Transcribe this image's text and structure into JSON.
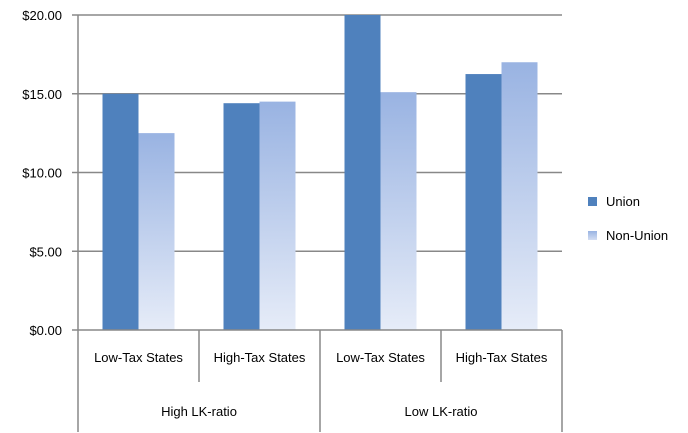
{
  "chart_data": {
    "type": "bar",
    "categories": [
      "Low-Tax States",
      "High-Tax States",
      "Low-Tax States",
      "High-Tax States"
    ],
    "groups": [
      {
        "label": "High LK-ratio",
        "span": [
          0,
          1
        ]
      },
      {
        "label": "Low LK-ratio",
        "span": [
          2,
          3
        ]
      }
    ],
    "series": [
      {
        "name": "Union",
        "values": [
          15.0,
          14.4,
          20.0,
          16.25
        ],
        "color": "#4f81bd"
      },
      {
        "name": "Non-Union",
        "values": [
          12.5,
          14.5,
          15.1,
          17.0
        ],
        "color": "#a3bde6"
      }
    ],
    "ylim": [
      0,
      20
    ],
    "yticks": [
      {
        "value": 0,
        "label": "$0.00"
      },
      {
        "value": 5,
        "label": "$5.00"
      },
      {
        "value": 10,
        "label": "$10.00"
      },
      {
        "value": 15,
        "label": "$15.00"
      },
      {
        "value": 20,
        "label": "$20.00"
      }
    ],
    "grid": true,
    "legend_position": "right",
    "title": "",
    "xlabel": "",
    "ylabel": ""
  }
}
